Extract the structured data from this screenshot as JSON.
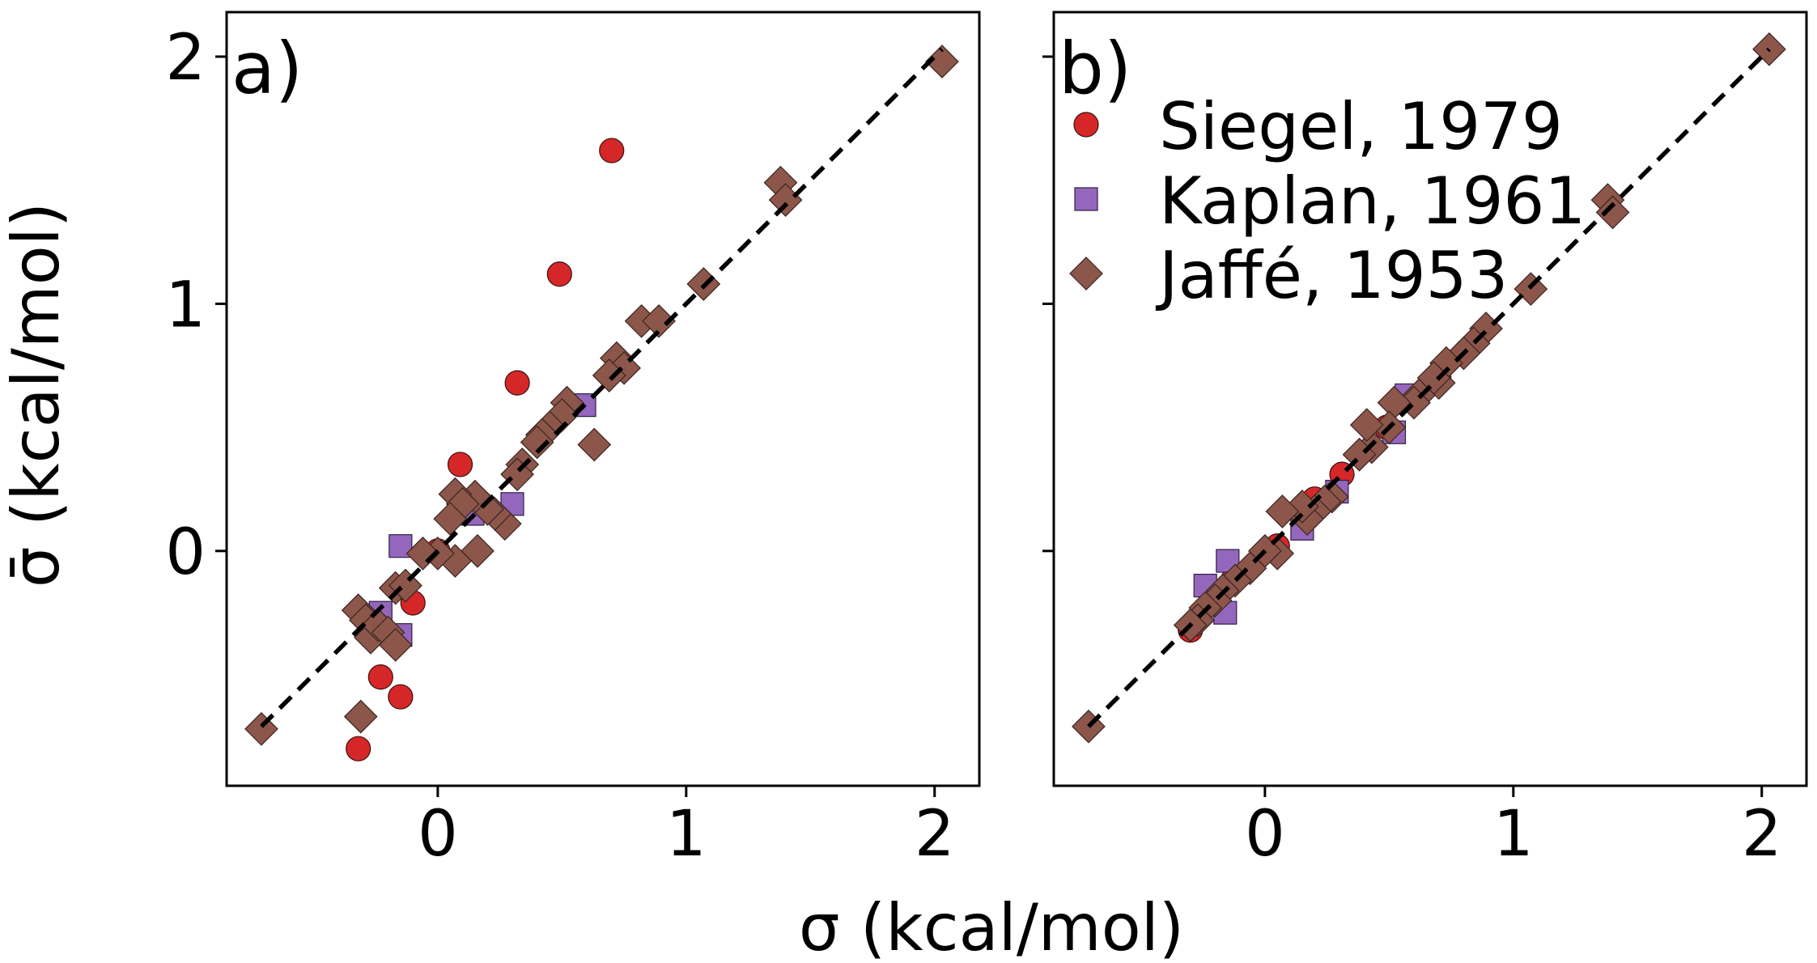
{
  "figure": {
    "ylabel": "σ̄ (kcal/mol)",
    "xlabel": "σ (kcal/mol)",
    "colors": {
      "siegel": "#d62728",
      "kaplan": "#9467bd",
      "jaffe": "#8c564b",
      "line": "#000000"
    }
  },
  "legend": {
    "entries": [
      {
        "label": "Siegel, 1979",
        "marker": "circle",
        "color": "#d62728"
      },
      {
        "label": "Kaplan, 1961",
        "marker": "square",
        "color": "#9467bd"
      },
      {
        "label": "Jaffé, 1953",
        "marker": "diamond",
        "color": "#8c564b"
      }
    ]
  },
  "chart_data": [
    {
      "type": "scatter",
      "panel_label": "a)",
      "xlim": [
        -0.85,
        2.18
      ],
      "ylim": [
        -0.95,
        2.18
      ],
      "xticks": [
        0,
        1,
        2
      ],
      "yticks": [
        0,
        1,
        2
      ],
      "xtick_labels": [
        "0",
        "1",
        "2"
      ],
      "ytick_labels": [
        "0",
        "1",
        "2"
      ],
      "reference_line": {
        "from": [
          -0.71,
          -0.71
        ],
        "to": [
          2.03,
          2.03
        ],
        "style": "dashed"
      },
      "series": [
        {
          "name": "Siegel, 1979",
          "marker": "circle",
          "color": "#d62728",
          "x": [
            0.7,
            0.49,
            0.32,
            0.09,
            0.0,
            -0.1,
            -0.23,
            -0.15,
            -0.32
          ],
          "y": [
            1.62,
            1.12,
            0.68,
            0.35,
            0.0,
            -0.21,
            -0.51,
            -0.59,
            -0.8
          ]
        },
        {
          "name": "Kaplan, 1961",
          "marker": "square",
          "color": "#9467bd",
          "x": [
            -0.15,
            0.59,
            0.3,
            0.14,
            -0.23,
            -0.15
          ],
          "y": [
            0.02,
            0.59,
            0.19,
            0.15,
            -0.25,
            -0.34
          ]
        },
        {
          "name": "Jaffé, 1953",
          "marker": "diamond",
          "color": "#8c564b",
          "x": [
            2.03,
            1.38,
            1.4,
            1.07,
            0.82,
            0.89,
            0.72,
            0.75,
            0.69,
            0.63,
            0.52,
            0.5,
            0.45,
            0.42,
            0.4,
            0.34,
            0.32,
            0.27,
            0.23,
            0.2,
            0.15,
            0.16,
            0.07,
            0.1,
            0.05,
            0.07,
            0.0,
            -0.06,
            -0.17,
            -0.13,
            -0.32,
            -0.29,
            -0.27,
            -0.24,
            -0.2,
            -0.17,
            -0.31,
            -0.71
          ],
          "y": [
            1.98,
            1.49,
            1.42,
            1.08,
            0.93,
            0.93,
            0.78,
            0.74,
            0.71,
            0.43,
            0.6,
            0.55,
            0.5,
            0.47,
            0.44,
            0.35,
            0.31,
            0.11,
            0.15,
            0.17,
            0.22,
            0.0,
            0.23,
            0.19,
            0.13,
            -0.04,
            -0.01,
            -0.01,
            -0.15,
            -0.14,
            -0.24,
            -0.28,
            -0.35,
            -0.3,
            -0.33,
            -0.38,
            -0.67,
            -0.72
          ]
        }
      ]
    },
    {
      "type": "scatter",
      "panel_label": "b)",
      "xlim": [
        -0.85,
        2.18
      ],
      "ylim": [
        -0.95,
        2.18
      ],
      "xticks": [
        0,
        1,
        2
      ],
      "yticks": [
        0,
        1,
        2
      ],
      "xtick_labels": [
        "0",
        "1",
        "2"
      ],
      "ytick_labels": [
        "",
        "",
        ""
      ],
      "reference_line": {
        "from": [
          -0.71,
          -0.71
        ],
        "to": [
          2.03,
          2.03
        ],
        "style": "dashed"
      },
      "series": [
        {
          "name": "Siegel, 1979",
          "marker": "circle",
          "color": "#d62728",
          "x": [
            0.7,
            0.49,
            0.31,
            0.2,
            0.05,
            -0.13,
            -0.3
          ],
          "y": [
            0.7,
            0.5,
            0.31,
            0.21,
            0.02,
            -0.12,
            -0.32
          ]
        },
        {
          "name": "Kaplan, 1961",
          "marker": "square",
          "color": "#9467bd",
          "x": [
            0.57,
            0.52,
            0.29,
            0.15,
            -0.15,
            -0.24,
            -0.16
          ],
          "y": [
            0.63,
            0.48,
            0.24,
            0.09,
            -0.04,
            -0.14,
            -0.25
          ]
        },
        {
          "name": "Jaffé, 1953",
          "marker": "diamond",
          "color": "#8c564b",
          "x": [
            2.03,
            1.38,
            1.4,
            1.07,
            0.89,
            0.84,
            0.8,
            0.73,
            0.7,
            0.68,
            0.62,
            0.6,
            0.52,
            0.5,
            0.43,
            0.41,
            0.38,
            0.27,
            0.24,
            0.2,
            0.17,
            0.15,
            0.07,
            0.05,
            0.0,
            -0.06,
            -0.12,
            -0.17,
            -0.2,
            -0.24,
            -0.27,
            -0.3,
            -0.71
          ],
          "y": [
            2.03,
            1.42,
            1.37,
            1.06,
            0.9,
            0.84,
            0.8,
            0.76,
            0.68,
            0.7,
            0.63,
            0.6,
            0.6,
            0.5,
            0.42,
            0.51,
            0.39,
            0.22,
            0.2,
            0.16,
            0.13,
            0.18,
            0.16,
            -0.01,
            0.0,
            -0.07,
            -0.12,
            -0.16,
            -0.2,
            -0.23,
            -0.28,
            -0.3,
            -0.71
          ]
        }
      ]
    }
  ]
}
